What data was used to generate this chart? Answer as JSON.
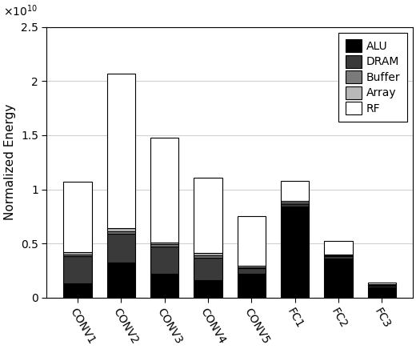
{
  "categories": [
    "CONV1",
    "CONV2",
    "CONV3",
    "CONV4",
    "CONV5",
    "FC1",
    "FC2",
    "FC3"
  ],
  "components": [
    "ALU",
    "DRAM",
    "Buffer",
    "Array",
    "RF"
  ],
  "colors": [
    "#000000",
    "#3a3a3a",
    "#7a7a7a",
    "#b8b8b8",
    "#ffffff"
  ],
  "edge_colors": [
    "#000000",
    "#000000",
    "#000000",
    "#000000",
    "#000000"
  ],
  "values": {
    "ALU": [
      1300000000.0,
      3200000000.0,
      2200000000.0,
      1600000000.0,
      2200000000.0,
      8400000000.0,
      3600000000.0,
      900000000.0
    ],
    "DRAM": [
      2500000000.0,
      2700000000.0,
      2500000000.0,
      2100000000.0,
      500000000.0,
      200000000.0,
      200000000.0,
      200000000.0
    ],
    "Buffer": [
      200000000.0,
      250000000.0,
      200000000.0,
      200000000.0,
      100000000.0,
      150000000.0,
      100000000.0,
      50000000.0
    ],
    "Array": [
      200000000.0,
      250000000.0,
      200000000.0,
      200000000.0,
      100000000.0,
      150000000.0,
      100000000.0,
      50000000.0
    ],
    "RF": [
      6500000000.0,
      14300000000.0,
      9700000000.0,
      7000000000.0,
      4600000000.0,
      1900000000.0,
      1200000000.0,
      200000000.0
    ]
  },
  "ylabel": "Normalized Energy",
  "ylim": [
    0,
    25000000000.0
  ],
  "yticks": [
    0,
    5000000000.0,
    10000000000.0,
    15000000000.0,
    20000000000.0,
    25000000000.0
  ],
  "ytick_labels": [
    "0",
    "0.5",
    "1",
    "1.5",
    "2",
    "2.5"
  ],
  "legend_labels": [
    "ALU",
    "DRAM",
    "Buffer",
    "Array",
    "RF"
  ],
  "figsize": [
    5.2,
    4.36
  ],
  "dpi": 100,
  "grid_color": "#d0d0d0",
  "bg_color": "#ffffff"
}
